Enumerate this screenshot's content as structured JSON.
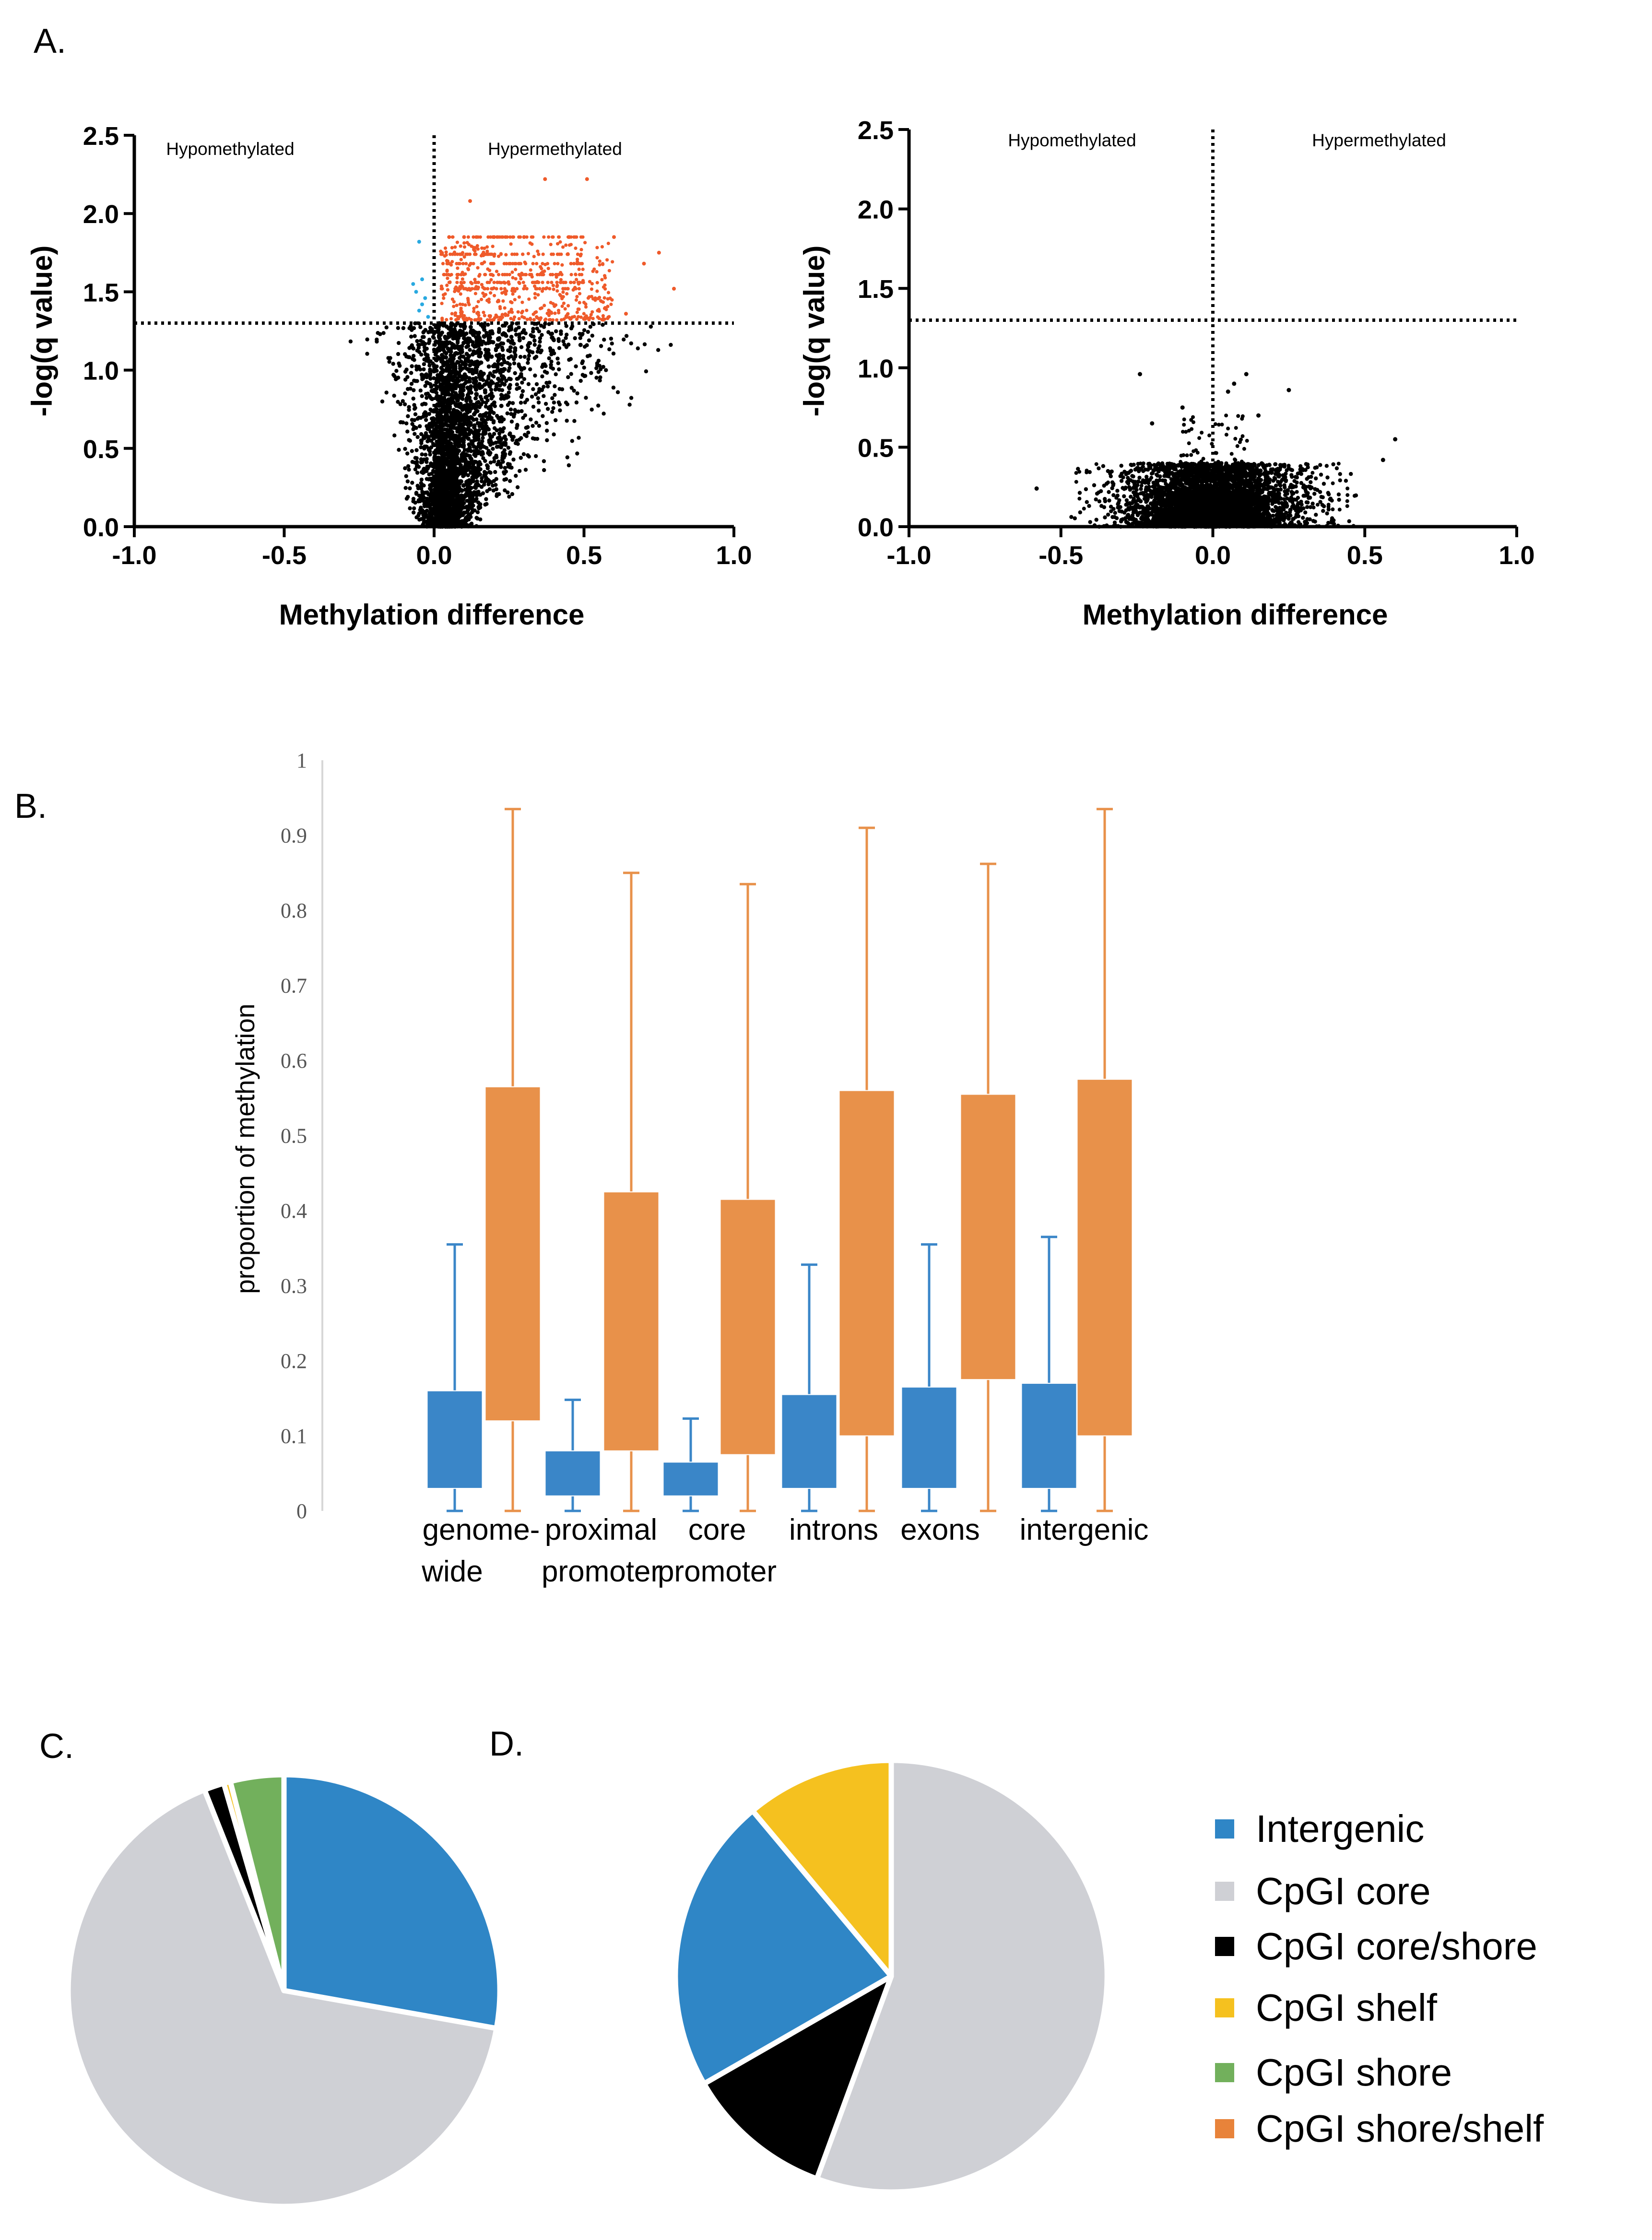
{
  "panels": {
    "a": "A.",
    "b": "B.",
    "c": "C.",
    "d": "D."
  },
  "colors": {
    "hypo": "#29a9e0",
    "hyper": "#ef5a2a",
    "point": "#000000",
    "box_blue": "#3a86c8",
    "box_orange": "#e8914a",
    "intergenic": "#2f86c6",
    "core": "#cfd0d5",
    "core_shore": "#000000",
    "shelf": "#f5c11f",
    "shore": "#72b05c",
    "shore_shelf": "#e8833a"
  },
  "chart_data": [
    {
      "type": "scatter",
      "panel": "A-left",
      "xlabel": "Methylation difference",
      "ylabel": "-log(q value)",
      "xlim": [
        -1.0,
        1.0
      ],
      "ylim": [
        0.0,
        2.5
      ],
      "xticks": [
        "-1.0",
        "-0.5",
        "0.0",
        "0.5",
        "1.0"
      ],
      "yticks": [
        "0.0",
        "0.5",
        "1.0",
        "1.5",
        "2.0",
        "2.5"
      ],
      "threshold_y": 1.3,
      "threshold_x": 0.0,
      "annotations": {
        "left": "Hypomethylated",
        "right": "Hypermethylated"
      },
      "cloud": {
        "x_center": 0.05,
        "x_spread_neg": 0.12,
        "x_spread_pos": 0.45,
        "y_max": 1.3
      },
      "hyper_points": [
        [
          0.37,
          2.22
        ],
        [
          0.51,
          2.22
        ],
        [
          0.12,
          2.08
        ],
        [
          0.05,
          1.85
        ],
        [
          0.1,
          1.85
        ],
        [
          0.2,
          1.85
        ],
        [
          0.3,
          1.85
        ],
        [
          0.45,
          1.85
        ],
        [
          0.6,
          1.85
        ],
        [
          0.75,
          1.75
        ],
        [
          0.8,
          1.52
        ],
        [
          0.7,
          1.68
        ],
        [
          0.64,
          1.36
        ]
      ],
      "hypo_points": [
        [
          -0.05,
          1.82
        ],
        [
          -0.04,
          1.58
        ],
        [
          -0.06,
          1.5
        ],
        [
          -0.03,
          1.46
        ],
        [
          -0.05,
          1.38
        ],
        [
          -0.02,
          1.34
        ],
        [
          -0.04,
          1.42
        ],
        [
          -0.07,
          1.55
        ]
      ]
    },
    {
      "type": "scatter",
      "panel": "A-right",
      "xlabel": "Methylation difference",
      "ylabel": "-log(q value)",
      "xlim": [
        -1.0,
        1.0
      ],
      "ylim": [
        0.0,
        2.5
      ],
      "xticks": [
        "-1.0",
        "-0.5",
        "0.0",
        "0.5",
        "1.0"
      ],
      "yticks": [
        "0.0",
        "0.5",
        "1.0",
        "1.5",
        "2.0",
        "2.5"
      ],
      "threshold_y": 1.3,
      "threshold_x": 0.0,
      "annotations": {
        "left": "Hypomethylated",
        "right": "Hypermethylated"
      },
      "cloud": {
        "x_center": 0.0,
        "x_spread": 0.45,
        "y_max": 0.42
      },
      "outliers": [
        [
          -0.24,
          0.96
        ],
        [
          0.11,
          0.96
        ],
        [
          0.07,
          0.9
        ],
        [
          0.25,
          0.86
        ],
        [
          -0.58,
          0.24
        ],
        [
          0.6,
          0.55
        ],
        [
          0.56,
          0.42
        ],
        [
          -0.2,
          0.65
        ],
        [
          0.15,
          0.7
        ],
        [
          -0.1,
          0.75
        ],
        [
          0.05,
          0.85
        ]
      ]
    },
    {
      "type": "box",
      "panel": "B",
      "ylabel": "proportion of methylation",
      "ylim": [
        0,
        1
      ],
      "yticks": [
        "0",
        "0.1",
        "0.2",
        "0.3",
        "0.4",
        "0.5",
        "0.6",
        "0.7",
        "0.8",
        "0.9",
        "1"
      ],
      "groups": [
        {
          "label1": "genome-",
          "label2": "wide",
          "blue": {
            "min": 0,
            "q1": 0.03,
            "q3": 0.16,
            "max": 0.355
          },
          "orange": {
            "min": 0,
            "q1": 0.12,
            "q3": 0.565,
            "max": 0.935
          }
        },
        {
          "label1": "proximal",
          "label2": "promoter",
          "blue": {
            "min": 0,
            "q1": 0.02,
            "q3": 0.08,
            "max": 0.148
          },
          "orange": {
            "min": 0,
            "q1": 0.08,
            "q3": 0.425,
            "max": 0.85
          }
        },
        {
          "label1": "core",
          "label2": "promoter",
          "blue": {
            "min": 0,
            "q1": 0.02,
            "q3": 0.065,
            "max": 0.123
          },
          "orange": {
            "min": 0,
            "q1": 0.075,
            "q3": 0.415,
            "max": 0.835
          }
        },
        {
          "label1": "introns",
          "label2": "",
          "blue": {
            "min": 0,
            "q1": 0.03,
            "q3": 0.155,
            "max": 0.328
          },
          "orange": {
            "min": 0,
            "q1": 0.1,
            "q3": 0.56,
            "max": 0.91
          }
        },
        {
          "label1": "exons",
          "label2": "",
          "blue": {
            "min": 0,
            "q1": 0.03,
            "q3": 0.165,
            "max": 0.355
          },
          "orange": {
            "min": 0,
            "q1": 0.175,
            "q3": 0.555,
            "max": 0.862
          }
        },
        {
          "label1": "intergenic",
          "label2": "",
          "blue": {
            "min": 0,
            "q1": 0.03,
            "q3": 0.17,
            "max": 0.365
          },
          "orange": {
            "min": 0,
            "q1": 0.1,
            "q3": 0.575,
            "max": 0.935
          }
        }
      ]
    },
    {
      "type": "pie",
      "panel": "C",
      "slices": [
        {
          "label": "Intergenic",
          "value": 27.8,
          "color": "#2f86c6"
        },
        {
          "label": "CpGI core",
          "value": 66.2,
          "color": "#cfd0d5"
        },
        {
          "label": "CpGI core/shore",
          "value": 1.5,
          "color": "#000000"
        },
        {
          "label": "CpGI shelf",
          "value": 0.5,
          "color": "#f5c11f"
        },
        {
          "label": "CpGI shore",
          "value": 4.0,
          "color": "#72b05c"
        },
        {
          "label": "CpGI shore/shelf",
          "value": 0.0,
          "color": "#e8833a"
        }
      ]
    },
    {
      "type": "pie",
      "panel": "D",
      "slices": [
        {
          "label": "CpGI core",
          "value": 55.6,
          "color": "#cfd0d5"
        },
        {
          "label": "CpGI core/shore",
          "value": 11.1,
          "color": "#000000"
        },
        {
          "label": "Intergenic",
          "value": 22.2,
          "color": "#2f86c6"
        },
        {
          "label": "CpGI shelf",
          "value": 11.1,
          "color": "#f5c11f"
        }
      ]
    }
  ],
  "legend": [
    {
      "label": "Intergenic",
      "color": "#2f86c6"
    },
    {
      "label": "CpGI core",
      "color": "#cfd0d5"
    },
    {
      "label": "CpGI core/shore",
      "color": "#000000"
    },
    {
      "label": "CpGI shelf",
      "color": "#f5c11f"
    },
    {
      "label": "CpGI shore",
      "color": "#72b05c"
    },
    {
      "label": "CpGI shore/shelf",
      "color": "#e8833a"
    }
  ]
}
